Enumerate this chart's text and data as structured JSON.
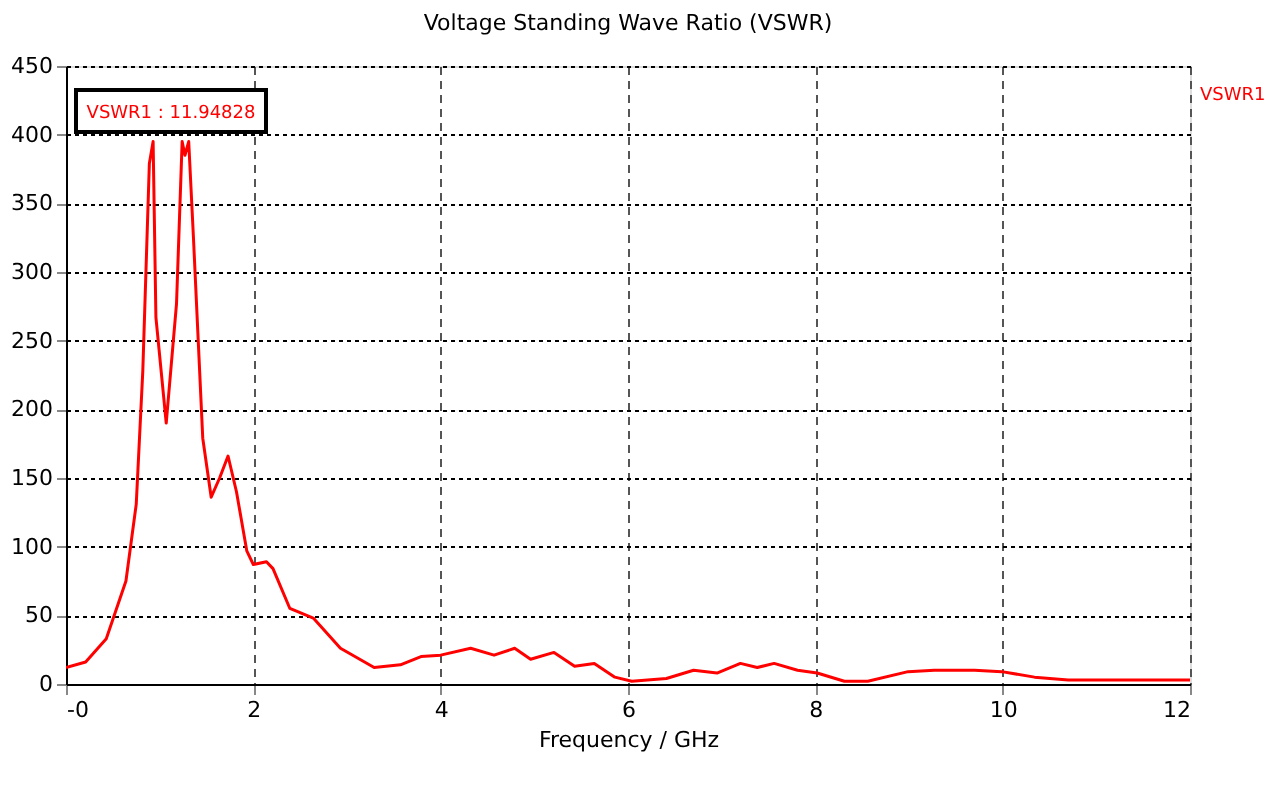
{
  "chart_data": {
    "type": "line",
    "title": "Voltage Standing Wave Ratio (VSWR)",
    "xlabel": "Frequency / GHz",
    "annotations": [
      "VSWR1 : 11.94828"
    ],
    "series": [
      {
        "name": "VSWR1",
        "color": "#ff0000",
        "x": [
          0,
          0.21,
          0.43,
          0.64,
          0.75,
          0.82,
          0.89,
          0.93,
          0.96,
          1.07,
          1.18,
          1.24,
          1.27,
          1.31,
          1.36,
          1.46,
          1.55,
          1.64,
          1.73,
          1.82,
          1.93,
          2.0,
          2.14,
          2.21,
          2.39,
          2.64,
          2.93,
          3.29,
          3.57,
          3.79,
          4.0,
          4.32,
          4.57,
          4.79,
          4.96,
          5.21,
          5.43,
          5.64,
          5.86,
          6.04,
          6.41,
          6.7,
          6.95,
          7.2,
          7.38,
          7.56,
          7.81,
          8.02,
          8.31,
          8.56,
          8.99,
          9.27,
          9.7,
          9.99,
          10.34,
          10.7,
          12
        ],
        "values": [
          12,
          16,
          33,
          75,
          131,
          228,
          379,
          395,
          267,
          190,
          277,
          395,
          385,
          395,
          326,
          179,
          136,
          150,
          166,
          140,
          97,
          87,
          89,
          84,
          55,
          48,
          26,
          12,
          14,
          20,
          21,
          26,
          21,
          26,
          18,
          23,
          13,
          15,
          5,
          2,
          4,
          10,
          8,
          15,
          12,
          15,
          10,
          8,
          2,
          2,
          9,
          10,
          10,
          9,
          5,
          3,
          3
        ]
      }
    ],
    "xlim": [
      0,
      12
    ],
    "xticks": [
      {
        "value": 0,
        "label": "-0"
      },
      2,
      4,
      6,
      8,
      10,
      12
    ],
    "ylim": [
      0,
      450
    ],
    "yticks": [
      0,
      50,
      100,
      150,
      200,
      250,
      300,
      350,
      400,
      450
    ],
    "grid": true,
    "line_style": "solid",
    "legend": "top right"
  }
}
